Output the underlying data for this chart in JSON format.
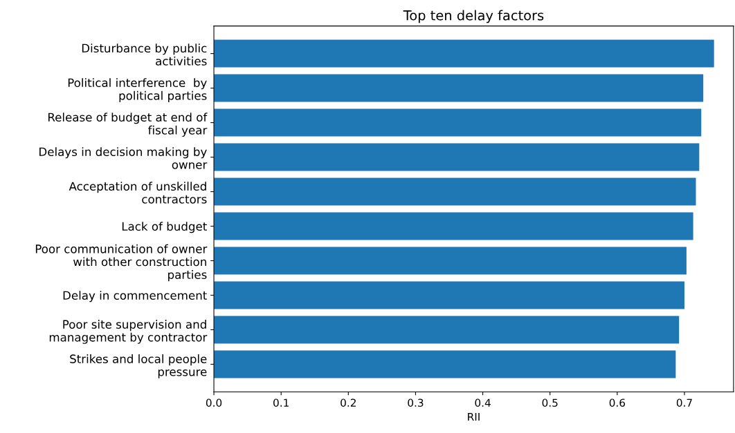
{
  "chart_data": {
    "type": "bar",
    "orientation": "horizontal",
    "title": "Top ten delay factors",
    "xlabel": "RII",
    "categories": [
      "Disturbance by public\nactivities",
      "Political interference  by\npolitical parties",
      "Release of budget at end of\nfiscal year",
      "Delays in decision making by\nowner",
      "Acceptation of unskilled\ncontractors",
      "Lack of budget",
      "Poor communication of owner\nwith other construction\nparties",
      "Delay in commencement",
      "Poor site supervision and\nmanagement by contractor",
      "Strikes and local people\npressure"
    ],
    "values": [
      0.744,
      0.728,
      0.725,
      0.722,
      0.717,
      0.713,
      0.703,
      0.7,
      0.692,
      0.687
    ],
    "color": "#1f77b4",
    "xlim": [
      0,
      0.773
    ],
    "xticks": [
      {
        "value": 0,
        "label": "0.0"
      },
      0.1,
      0.2,
      0.3,
      0.4,
      0.5,
      0.6,
      0.7
    ],
    "grid": false
  }
}
